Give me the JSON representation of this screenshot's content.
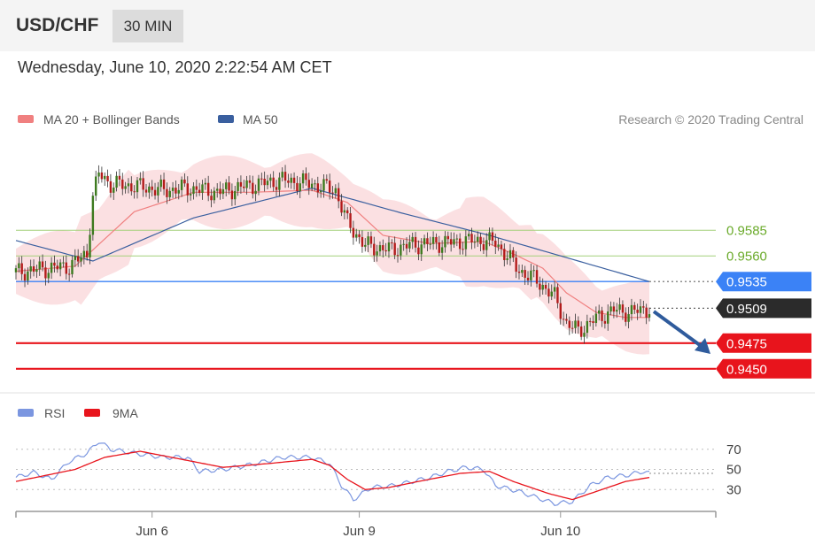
{
  "header": {
    "symbol": "USD/CHF",
    "timeframe": "30 MIN",
    "timestamp": "Wednesday, June 10, 2020 2:22:54 AM CET"
  },
  "legend": {
    "ma20_label": "MA 20 + Bollinger Bands",
    "ma50_label": "MA 50",
    "credit": "Research © 2020 Trading Central"
  },
  "rsi_legend": {
    "rsi_label": "RSI",
    "ma9_label": "9MA"
  },
  "colors": {
    "ma20": "#f08080",
    "band_fill": "#fadadd",
    "ma50": "#3a5f9f",
    "green_level": "#a4d07a",
    "green_text": "#6aaa2a",
    "blue_level": "#3b82f6",
    "red_level": "#e8141c",
    "current": "#2b2b2b",
    "arrow": "#2f5b9c",
    "rsi": "#7b96e0",
    "ma9": "#e8141c"
  },
  "chart_data": [
    {
      "type": "candlestick",
      "title": "USD/CHF 30 MIN",
      "x_ticks": [
        "Jun 6",
        "Jun 9",
        "Jun 10"
      ],
      "ylim": [
        0.943,
        0.968
      ],
      "levels": [
        {
          "value": 0.9585,
          "label": "0.9585",
          "kind": "resistance"
        },
        {
          "value": 0.956,
          "label": "0.9560",
          "kind": "resistance"
        },
        {
          "value": 0.9535,
          "label": "0.9535",
          "kind": "pivot"
        },
        {
          "value": 0.9509,
          "label": "0.9509",
          "kind": "current"
        },
        {
          "value": 0.9475,
          "label": "0.9475",
          "kind": "support"
        },
        {
          "value": 0.945,
          "label": "0.9450",
          "kind": "support"
        }
      ],
      "price_path": [
        [
          0,
          0.9544
        ],
        [
          8,
          0.9547
        ],
        [
          18,
          0.955
        ],
        [
          24,
          0.9562
        ],
        [
          26,
          0.9618
        ],
        [
          28,
          0.964
        ],
        [
          32,
          0.963
        ],
        [
          40,
          0.9628
        ],
        [
          50,
          0.9624
        ],
        [
          58,
          0.9626
        ],
        [
          68,
          0.9622
        ],
        [
          78,
          0.9628
        ],
        [
          90,
          0.9634
        ],
        [
          100,
          0.963
        ],
        [
          108,
          0.9624
        ],
        [
          112,
          0.9592
        ],
        [
          118,
          0.957
        ],
        [
          126,
          0.9566
        ],
        [
          134,
          0.9571
        ],
        [
          146,
          0.9573
        ],
        [
          156,
          0.9575
        ],
        [
          162,
          0.9573
        ],
        [
          166,
          0.956
        ],
        [
          170,
          0.9546
        ],
        [
          176,
          0.9536
        ],
        [
          182,
          0.952
        ],
        [
          186,
          0.9494
        ],
        [
          190,
          0.9487
        ],
        [
          196,
          0.9499
        ],
        [
          202,
          0.9507
        ],
        [
          208,
          0.9505
        ],
        [
          214,
          0.9509
        ]
      ],
      "ma50_path": [
        [
          0,
          0.9575
        ],
        [
          26,
          0.9555
        ],
        [
          60,
          0.9597
        ],
        [
          100,
          0.9626
        ],
        [
          130,
          0.9602
        ],
        [
          160,
          0.958
        ],
        [
          190,
          0.9555
        ],
        [
          214,
          0.9535
        ]
      ],
      "ma20_path": [
        [
          0,
          0.9545
        ],
        [
          20,
          0.955
        ],
        [
          40,
          0.9603
        ],
        [
          60,
          0.9622
        ],
        [
          80,
          0.9622
        ],
        [
          100,
          0.9624
        ],
        [
          112,
          0.9612
        ],
        [
          124,
          0.958
        ],
        [
          140,
          0.9572
        ],
        [
          158,
          0.9574
        ],
        [
          168,
          0.9562
        ],
        [
          178,
          0.9548
        ],
        [
          186,
          0.9524
        ],
        [
          196,
          0.9505
        ],
        [
          206,
          0.95
        ],
        [
          214,
          0.95
        ]
      ]
    },
    {
      "type": "line",
      "title": "RSI",
      "ylim": [
        10,
        90
      ],
      "y_ticks": [
        70,
        50,
        30
      ],
      "series": [
        {
          "name": "RSI",
          "points": [
            [
              0,
              42
            ],
            [
              6,
              47
            ],
            [
              12,
              40
            ],
            [
              18,
              58
            ],
            [
              24,
              66
            ],
            [
              28,
              78
            ],
            [
              32,
              70
            ],
            [
              40,
              66
            ],
            [
              50,
              62
            ],
            [
              58,
              62
            ],
            [
              62,
              48
            ],
            [
              70,
              50
            ],
            [
              80,
              55
            ],
            [
              90,
              62
            ],
            [
              100,
              62
            ],
            [
              106,
              56
            ],
            [
              110,
              34
            ],
            [
              114,
              20
            ],
            [
              120,
              32
            ],
            [
              128,
              34
            ],
            [
              140,
              42
            ],
            [
              146,
              48
            ],
            [
              152,
              52
            ],
            [
              158,
              50
            ],
            [
              162,
              34
            ],
            [
              170,
              28
            ],
            [
              176,
              22
            ],
            [
              182,
              16
            ],
            [
              188,
              18
            ],
            [
              194,
              34
            ],
            [
              200,
              42
            ],
            [
              206,
              44
            ],
            [
              212,
              48
            ],
            [
              214,
              46
            ]
          ]
        },
        {
          "name": "9MA",
          "points": [
            [
              0,
              38
            ],
            [
              20,
              50
            ],
            [
              30,
              62
            ],
            [
              42,
              68
            ],
            [
              56,
              60
            ],
            [
              70,
              52
            ],
            [
              86,
              56
            ],
            [
              100,
              60
            ],
            [
              106,
              54
            ],
            [
              112,
              40
            ],
            [
              118,
              30
            ],
            [
              126,
              32
            ],
            [
              136,
              38
            ],
            [
              150,
              46
            ],
            [
              160,
              48
            ],
            [
              168,
              38
            ],
            [
              180,
              26
            ],
            [
              188,
              20
            ],
            [
              196,
              28
            ],
            [
              206,
              38
            ],
            [
              214,
              42
            ]
          ]
        }
      ]
    }
  ]
}
